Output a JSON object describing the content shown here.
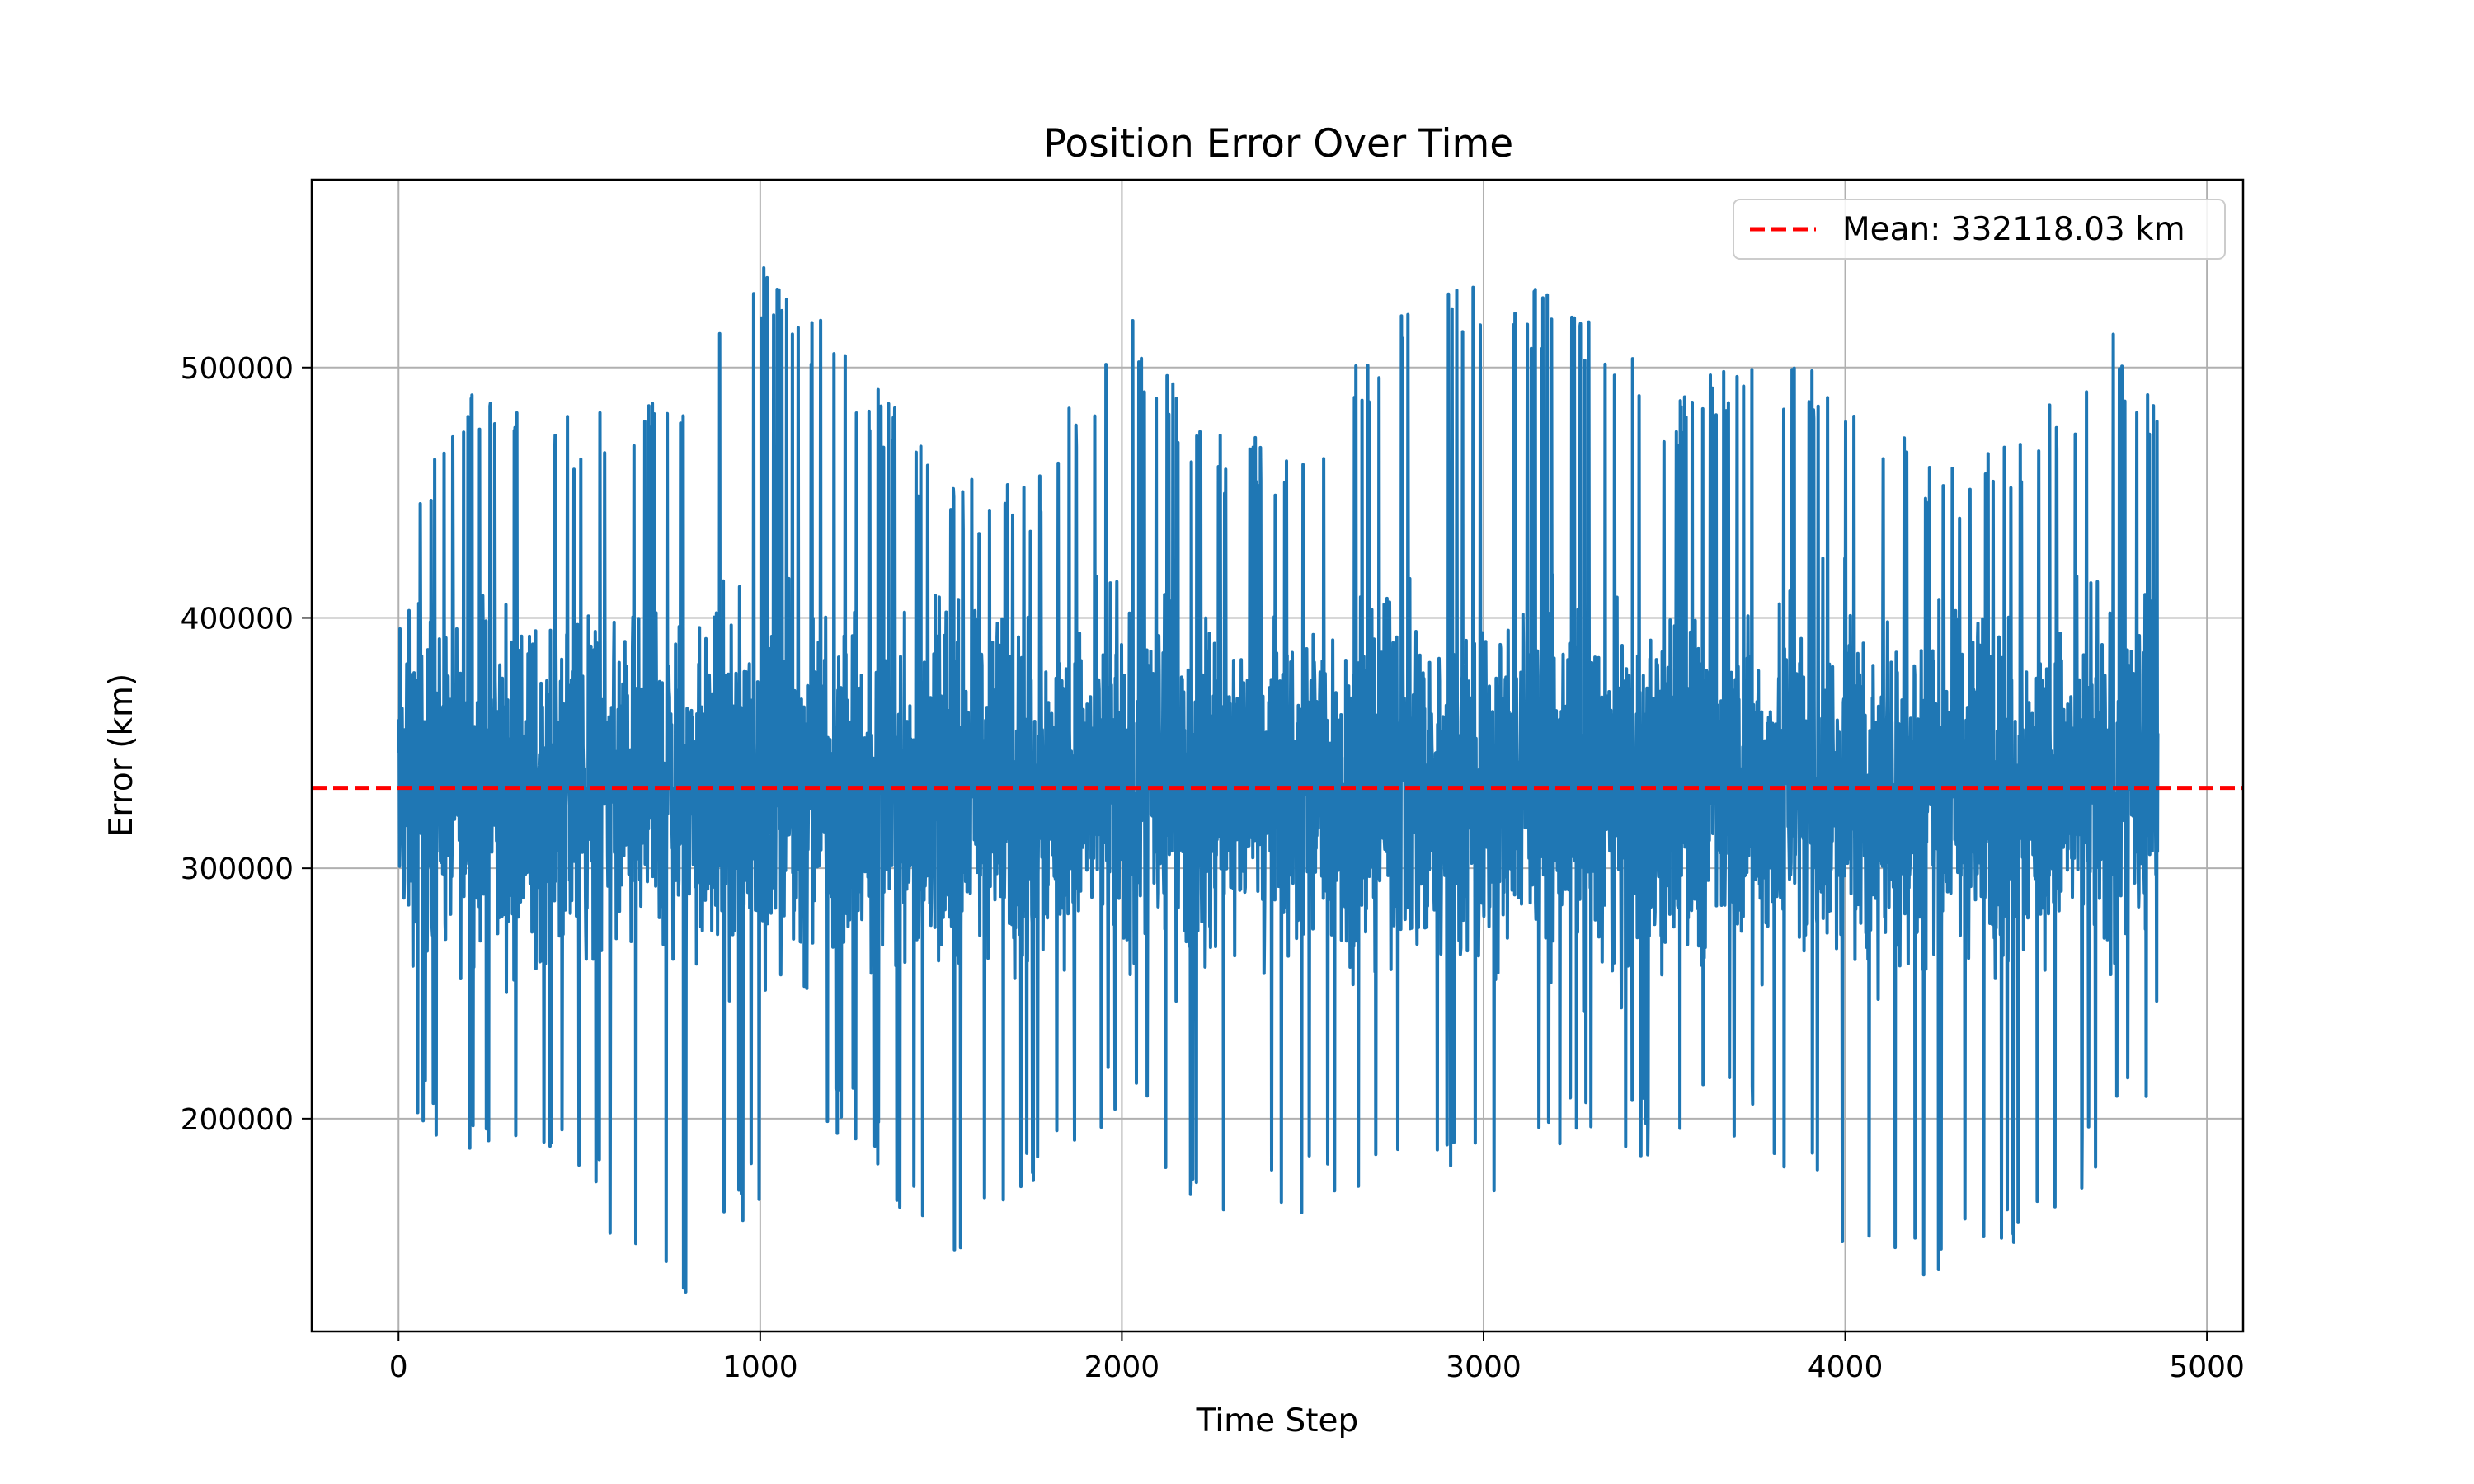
{
  "chart_data": {
    "type": "line",
    "title": "Position Error Over Time",
    "xlabel": "Time Step",
    "ylabel": "Error (km)",
    "xlim": [
      -240,
      5100
    ],
    "ylim": [
      115000,
      575000
    ],
    "xticks": [
      0,
      1000,
      2000,
      3000,
      4000,
      5000
    ],
    "yticks": [
      200000,
      300000,
      400000,
      500000
    ],
    "grid": true,
    "legend_position": "top-right",
    "series": [
      {
        "color": "#1f77b4",
        "n_points": 4865,
        "x_range": [
          0,
          4864
        ],
        "y_range": [
          123000,
          542000
        ],
        "envelope_x": [
          0,
          250,
          500,
          750,
          1000,
          1250,
          1500,
          1750,
          2000,
          2250,
          2500,
          2750,
          3000,
          3250,
          3500,
          3750,
          4000,
          4250,
          4500,
          4750,
          4864
        ],
        "envelope_upper": [
          450000,
          500000,
          480000,
          495000,
          542000,
          510000,
          460000,
          455000,
          525000,
          475000,
          470000,
          525000,
          535000,
          530000,
          490000,
          510000,
          495000,
          460000,
          475000,
          515000,
          485000
        ],
        "envelope_lower": [
          197000,
          175000,
          170000,
          123000,
          165000,
          195000,
          128000,
          165000,
          205000,
          145000,
          160000,
          180000,
          168000,
          185000,
          185000,
          195000,
          148000,
          135000,
          142000,
          190000,
          210000
        ]
      }
    ],
    "reference_lines": [
      {
        "orientation": "horizontal",
        "y": 332118.03,
        "color": "#ff0000",
        "style": "dashed",
        "label": "Mean: 332118.03 km"
      }
    ]
  }
}
